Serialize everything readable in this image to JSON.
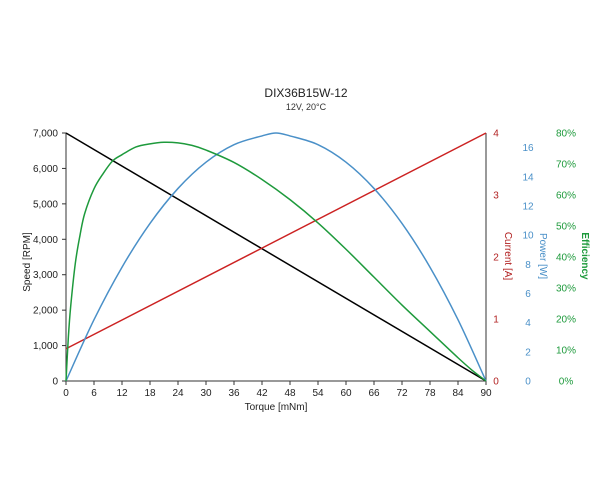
{
  "chart_data": {
    "type": "line",
    "title": "DIX36B15W-12",
    "subtitle": "12V, 20°C",
    "xlabel": "Torque [mNm]",
    "xlim": [
      0,
      90
    ],
    "x_ticks": [
      "0",
      "6",
      "12",
      "18",
      "24",
      "30",
      "36",
      "42",
      "48",
      "54",
      "60",
      "66",
      "72",
      "78",
      "84",
      "90"
    ],
    "axes": {
      "speed": {
        "label": "Speed [RPM]",
        "range": [
          0,
          7000
        ],
        "ticks": [
          "0",
          "1,000",
          "2,000",
          "3,000",
          "4,000",
          "5,000",
          "6,000",
          "7,000"
        ],
        "color": "#000000"
      },
      "current": {
        "label": "Current [A]",
        "range": [
          0,
          4
        ],
        "ticks": [
          "0",
          "1",
          "2",
          "3",
          "4"
        ],
        "color": "#b22222"
      },
      "power": {
        "label": "Power [W]",
        "range": [
          0,
          17
        ],
        "ticks": [
          "0",
          "2",
          "4",
          "6",
          "8",
          "10",
          "12",
          "14",
          "16"
        ],
        "color": "#4a90c8"
      },
      "efficiency": {
        "label": "Efficiency",
        "range": [
          0,
          80
        ],
        "ticks": [
          "0%",
          "10%",
          "20%",
          "30%",
          "40%",
          "50%",
          "60%",
          "70%",
          "80%"
        ],
        "color": "#1e9a3c"
      }
    },
    "series": [
      {
        "axis": "speed",
        "color": "#000000",
        "x": [
          0,
          90
        ],
        "y": [
          7000,
          0
        ]
      },
      {
        "axis": "current",
        "color": "#cc2222",
        "x": [
          0,
          90
        ],
        "y": [
          0.52,
          4.0
        ]
      },
      {
        "axis": "power",
        "color": "#4a90c8",
        "x": [
          0,
          6,
          12,
          18,
          24,
          30,
          36,
          42,
          45,
          48,
          54,
          60,
          66,
          72,
          78,
          84,
          90
        ],
        "y": [
          0,
          4.2,
          7.8,
          10.8,
          13.2,
          15.0,
          16.2,
          16.8,
          17.0,
          16.8,
          16.2,
          15.0,
          13.2,
          10.8,
          7.8,
          4.2,
          0
        ]
      },
      {
        "axis": "efficiency",
        "color": "#1e9a3c",
        "x": [
          0,
          0.5,
          1,
          2,
          3,
          4,
          6,
          8,
          10,
          12,
          15,
          18,
          21,
          24,
          27,
          30,
          36,
          42,
          48,
          54,
          60,
          66,
          72,
          78,
          84,
          87,
          90
        ],
        "y": [
          0,
          14,
          24,
          38,
          47,
          54,
          62,
          67,
          71,
          73,
          75.5,
          76.5,
          77,
          76.8,
          76,
          74.5,
          70.5,
          65,
          58.5,
          51,
          42.5,
          33.5,
          24.5,
          16,
          7.5,
          3.5,
          0
        ]
      }
    ]
  }
}
